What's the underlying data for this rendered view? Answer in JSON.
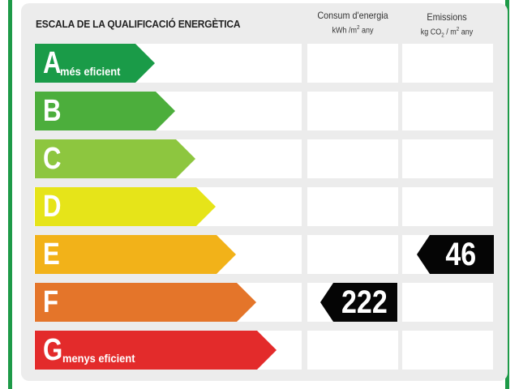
{
  "title": "ESCALA DE LA QUALIFICACIÓ ENERGÈTICA",
  "columns": {
    "consum": {
      "label": "Consum d'energia",
      "unit_main": "kWh /m",
      "unit_sup": "2",
      "unit_tail": " any"
    },
    "emissions": {
      "label": "Emissions",
      "unit_main": "kg CO",
      "unit_sub": "2",
      "unit_mid": " / m",
      "unit_sup": "2",
      "unit_tail": " any"
    }
  },
  "ratings": [
    {
      "letter": "A",
      "subtitle": "més eficient",
      "color": "#1a9b48"
    },
    {
      "letter": "B",
      "subtitle": "",
      "color": "#4cae3c"
    },
    {
      "letter": "C",
      "subtitle": "",
      "color": "#8dc63f"
    },
    {
      "letter": "D",
      "subtitle": "",
      "color": "#e6e419"
    },
    {
      "letter": "E",
      "subtitle": "",
      "color": "#f2b219"
    },
    {
      "letter": "F",
      "subtitle": "",
      "color": "#e4752a"
    },
    {
      "letter": "G",
      "subtitle": "menys eficient",
      "color": "#e32b2b"
    }
  ],
  "indicators": {
    "consum": {
      "value": "222",
      "row_letter": "F"
    },
    "emissions": {
      "value": "46",
      "row_letter": "E"
    }
  },
  "frame_color": "#1e9a48"
}
